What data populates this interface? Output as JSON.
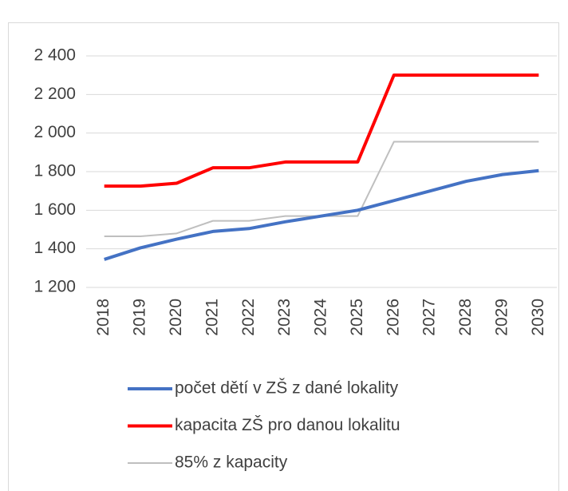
{
  "chart_data": {
    "type": "line",
    "categories": [
      "2018",
      "2019",
      "2020",
      "2021",
      "2022",
      "2023",
      "2024",
      "2025",
      "2026",
      "2027",
      "2028",
      "2029",
      "2030"
    ],
    "series": [
      {
        "name": "počet dětí v ZŠ z dané lokality",
        "color": "#4472c4",
        "values": [
          1345,
          1405,
          1450,
          1490,
          1505,
          1540,
          1570,
          1600,
          1650,
          1700,
          1750,
          1785,
          1805
        ]
      },
      {
        "name": "kapacita ZŠ pro danou lokalitu",
        "color": "#ff0000",
        "values": [
          1725,
          1725,
          1740,
          1820,
          1820,
          1850,
          1850,
          1850,
          2300,
          2300,
          2300,
          2300,
          2300
        ]
      },
      {
        "name": "85% z kapacity",
        "color": "#bfbfbf",
        "values": [
          1465,
          1465,
          1480,
          1545,
          1545,
          1570,
          1570,
          1570,
          1955,
          1955,
          1955,
          1955,
          1955
        ]
      }
    ],
    "ylim": [
      1200,
      2400
    ],
    "yticks": [
      {
        "value": 1200,
        "label": "1 200"
      },
      {
        "value": 1400,
        "label": "1 400"
      },
      {
        "value": 1600,
        "label": "1 600"
      },
      {
        "value": 1800,
        "label": "1 800"
      },
      {
        "value": 2000,
        "label": "2 000"
      },
      {
        "value": 2200,
        "label": "2 200"
      },
      {
        "value": 2400,
        "label": "2 400"
      }
    ],
    "grid": true,
    "legend": "bottom"
  }
}
